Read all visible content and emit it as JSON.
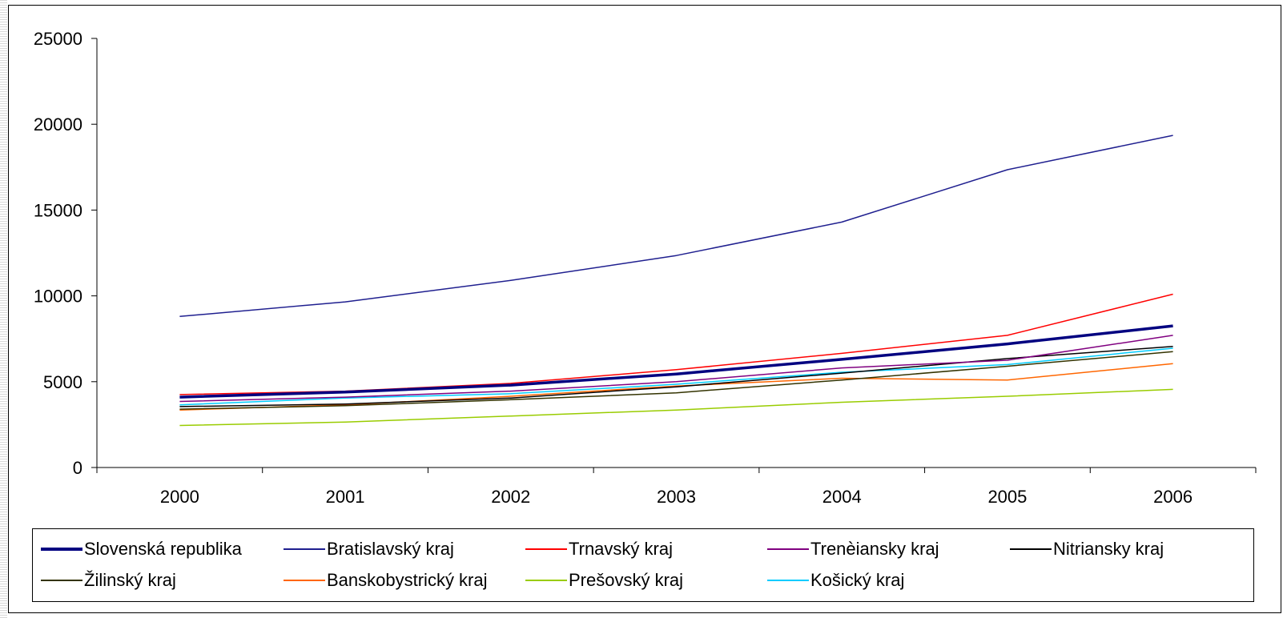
{
  "chart_data": {
    "type": "line",
    "title": "",
    "xlabel": "",
    "ylabel": "",
    "x": [
      "2000",
      "2001",
      "2002",
      "2003",
      "2004",
      "2005",
      "2006"
    ],
    "ylim": [
      0,
      25000
    ],
    "yticks": [
      "0",
      "5000",
      "10000",
      "15000",
      "20000",
      "25000"
    ],
    "grid": false,
    "legend_position": "bottom",
    "series": [
      {
        "name": "Slovenská republika",
        "color": "#000080",
        "values": [
          4100,
          4400,
          4800,
          5450,
          6300,
          7200,
          8250
        ]
      },
      {
        "name": "Bratislavský kraj",
        "color": "#1f1f8f",
        "values": [
          8800,
          9650,
          10900,
          12350,
          14300,
          17350,
          19350
        ]
      },
      {
        "name": "Trnavský kraj",
        "color": "#ff0000",
        "values": [
          4250,
          4450,
          4900,
          5700,
          6650,
          7700,
          10100
        ]
      },
      {
        "name": "Trenèiansky kraj",
        "color": "#800080",
        "values": [
          3850,
          4100,
          4450,
          5000,
          5800,
          6250,
          7700
        ]
      },
      {
        "name": "Nitriansky kraj",
        "color": "#000000",
        "values": [
          3550,
          3700,
          4050,
          4700,
          5500,
          6350,
          7050
        ]
      },
      {
        "name": "Žilinský kraj",
        "color": "#333300",
        "values": [
          3400,
          3600,
          3950,
          4350,
          5100,
          5900,
          6750
        ]
      },
      {
        "name": "Banskobystrický kraj",
        "color": "#ff6600",
        "values": [
          3350,
          3650,
          4150,
          4750,
          5200,
          5100,
          6050
        ]
      },
      {
        "name": "Prešovský kraj",
        "color": "#99cc00",
        "values": [
          2450,
          2650,
          3000,
          3350,
          3800,
          4150,
          4550
        ]
      },
      {
        "name": "Košický kraj",
        "color": "#00ccff",
        "values": [
          3650,
          4050,
          4300,
          4850,
          5550,
          6000,
          6950
        ]
      }
    ]
  }
}
